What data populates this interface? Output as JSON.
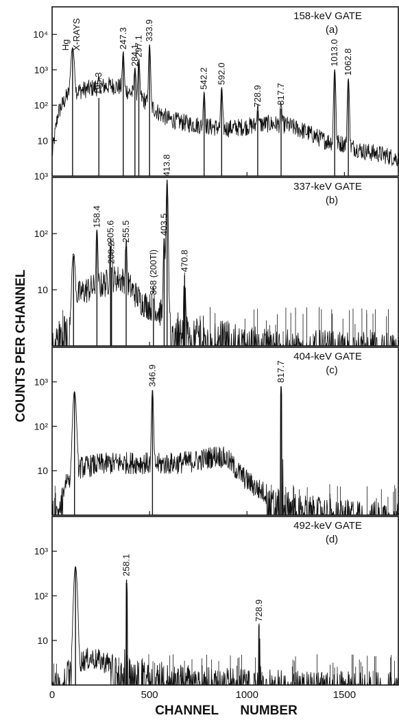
{
  "figure": {
    "ylabel": "COUNTS   PER   CHANNEL",
    "xlabel": "CHANNEL      NUMBER"
  },
  "chart_data": [
    {
      "type": "line",
      "panel": "(a)",
      "title": "158-keV GATE",
      "x_ticks": [
        "0",
        "500",
        "1000",
        "1500"
      ],
      "y_scale": "log",
      "y_ticks": [
        "10",
        "10²",
        "10³",
        "10⁴"
      ],
      "y_bottom_label": "10³",
      "xlim": [
        0,
        1780
      ],
      "ylim": [
        1,
        60000
      ],
      "extra_labels": [
        "Hg",
        "X-RAYS"
      ],
      "peaks": [
        {
          "label": "195.3",
          "channel": 240,
          "counts": 160
        },
        {
          "label": "247.3",
          "channel": 365,
          "counts": 3000
        },
        {
          "label": "284.1",
          "channel": 425,
          "counts": 1000
        },
        {
          "label": "297.1",
          "channel": 445,
          "counts": 1800
        },
        {
          "label": "333.9",
          "channel": 500,
          "counts": 5000
        },
        {
          "label": "542.2",
          "channel": 780,
          "counts": 220
        },
        {
          "label": "592.0",
          "channel": 870,
          "counts": 300
        },
        {
          "label": "728.9",
          "channel": 1055,
          "counts": 70
        },
        {
          "label": "817.7",
          "channel": 1175,
          "counts": 80
        },
        {
          "label": "1013.0",
          "channel": 1450,
          "counts": 1000
        },
        {
          "label": "1062.8",
          "channel": 1520,
          "counts": 550
        }
      ],
      "xray_peak": {
        "channel": 105,
        "counts": 4000
      },
      "continuum": [
        [
          0,
          4
        ],
        [
          30,
          60
        ],
        [
          80,
          200
        ],
        [
          130,
          250
        ],
        [
          200,
          300
        ],
        [
          250,
          330
        ],
        [
          300,
          360
        ],
        [
          350,
          330
        ],
        [
          400,
          230
        ],
        [
          450,
          180
        ],
        [
          500,
          100
        ],
        [
          550,
          60
        ],
        [
          600,
          40
        ],
        [
          700,
          30
        ],
        [
          800,
          25
        ],
        [
          900,
          22
        ],
        [
          1000,
          25
        ],
        [
          1100,
          30
        ],
        [
          1200,
          28
        ],
        [
          1300,
          18
        ],
        [
          1400,
          10
        ],
        [
          1500,
          8
        ],
        [
          1600,
          5
        ],
        [
          1700,
          4
        ],
        [
          1780,
          3
        ]
      ]
    },
    {
      "type": "line",
      "panel": "(b)",
      "title": "337-keV GATE",
      "x_ticks": [
        "0",
        "500",
        "1000",
        "1500"
      ],
      "y_scale": "log",
      "y_ticks": [
        "10",
        "10²"
      ],
      "xlim": [
        0,
        1780
      ],
      "ylim": [
        1,
        1000
      ],
      "peaks": [
        {
          "label": "158.4",
          "channel": 230,
          "counts": 110
        },
        {
          "label": "205.6",
          "channel": 300,
          "counts": 60
        },
        {
          "label": "208.2",
          "channel": 305,
          "counts": 25
        },
        {
          "label": "255.5",
          "channel": 380,
          "counts": 60
        },
        {
          "label": "368 (200Tl)",
          "channel": 520,
          "counts": 7
        },
        {
          "label": "403.5",
          "channel": 575,
          "counts": 80
        },
        {
          "label": "413.8",
          "channel": 590,
          "counts": 900
        },
        {
          "label": "470.8",
          "channel": 680,
          "counts": 18
        }
      ],
      "xray_peak": {
        "channel": 110,
        "counts": 40
      },
      "continuum": [
        [
          0,
          1
        ],
        [
          50,
          2
        ],
        [
          90,
          3
        ],
        [
          130,
          8
        ],
        [
          180,
          10
        ],
        [
          250,
          12
        ],
        [
          330,
          16
        ],
        [
          380,
          14
        ],
        [
          420,
          9
        ],
        [
          460,
          6
        ],
        [
          500,
          5
        ],
        [
          550,
          4
        ],
        [
          600,
          3
        ],
        [
          700,
          2
        ],
        [
          800,
          1.8
        ],
        [
          900,
          1.5
        ],
        [
          1000,
          1.3
        ],
        [
          1100,
          1.2
        ],
        [
          1200,
          1.1
        ],
        [
          1780,
          1
        ]
      ]
    },
    {
      "type": "line",
      "panel": "(c)",
      "title": "404-keV GATE",
      "x_ticks": [
        "0",
        "500",
        "1000",
        "1500"
      ],
      "y_scale": "log",
      "y_ticks": [
        "10",
        "10²",
        "10³"
      ],
      "xlim": [
        0,
        1780
      ],
      "ylim": [
        1,
        6000
      ],
      "peaks": [
        {
          "label": "346.9",
          "channel": 515,
          "counts": 650
        },
        {
          "label": "817.7",
          "channel": 1175,
          "counts": 800
        }
      ],
      "xray_peak": {
        "channel": 115,
        "counts": 600
      },
      "continuum": [
        [
          0,
          1
        ],
        [
          40,
          1.5
        ],
        [
          70,
          6
        ],
        [
          150,
          12
        ],
        [
          250,
          14
        ],
        [
          350,
          15
        ],
        [
          450,
          15
        ],
        [
          550,
          14
        ],
        [
          650,
          15
        ],
        [
          750,
          17
        ],
        [
          850,
          22
        ],
        [
          900,
          18
        ],
        [
          950,
          10
        ],
        [
          1000,
          6
        ],
        [
          1050,
          4
        ],
        [
          1100,
          3
        ],
        [
          1200,
          2
        ],
        [
          1300,
          1.6
        ],
        [
          1400,
          1.4
        ],
        [
          1500,
          1.3
        ],
        [
          1780,
          1.1
        ]
      ]
    },
    {
      "type": "line",
      "panel": "(d)",
      "title": "492-keV GATE",
      "x_ticks": [
        "0",
        "500",
        "1000",
        "1500"
      ],
      "y_scale": "log",
      "y_ticks": [
        "10",
        "10²",
        "10³"
      ],
      "xlim": [
        0,
        1780
      ],
      "ylim": [
        1,
        6000
      ],
      "peaks": [
        {
          "label": "258.1",
          "channel": 382,
          "counts": 230
        },
        {
          "label": "728.9",
          "channel": 1062,
          "counts": 22
        }
      ],
      "xray_peak": {
        "channel": 120,
        "counts": 450
      },
      "continuum": [
        [
          0,
          1
        ],
        [
          50,
          1.5
        ],
        [
          100,
          3
        ],
        [
          200,
          4
        ],
        [
          300,
          3
        ],
        [
          400,
          2.5
        ],
        [
          500,
          2
        ],
        [
          600,
          1.8
        ],
        [
          800,
          1.5
        ],
        [
          1000,
          1.3
        ],
        [
          1200,
          1.2
        ],
        [
          1780,
          1.1
        ]
      ]
    }
  ]
}
